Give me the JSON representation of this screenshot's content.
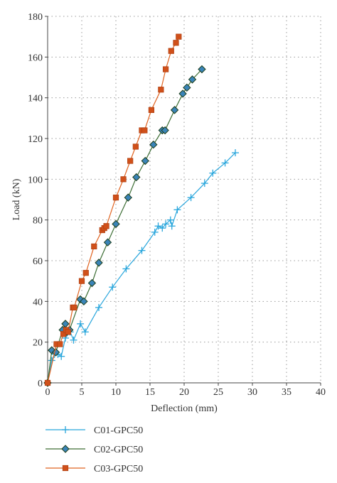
{
  "chart_data": {
    "type": "line",
    "title": "",
    "xlabel": "Deflection (mm)",
    "ylabel": "Load (kN)",
    "xlim": [
      0,
      40
    ],
    "ylim": [
      0,
      180
    ],
    "xticks": [
      0,
      5,
      10,
      15,
      20,
      25,
      30,
      35,
      40
    ],
    "yticks": [
      0,
      20,
      40,
      60,
      80,
      100,
      120,
      140,
      160,
      180
    ],
    "grid": true,
    "legend_position": "bottom-left",
    "series": [
      {
        "name": "C01-GPC50",
        "color": "#29a6dc",
        "marker": "plus",
        "points": [
          [
            0,
            0
          ],
          [
            0.6,
            11
          ],
          [
            1.0,
            14
          ],
          [
            1.5,
            14
          ],
          [
            2.0,
            13
          ],
          [
            2.6,
            22
          ],
          [
            3.3,
            25
          ],
          [
            3.8,
            21
          ],
          [
            4.8,
            29
          ],
          [
            5.5,
            25
          ],
          [
            7.5,
            37
          ],
          [
            9.5,
            47
          ],
          [
            11.5,
            56
          ],
          [
            13.8,
            65
          ],
          [
            15.7,
            74
          ],
          [
            16.2,
            77
          ],
          [
            16.8,
            76
          ],
          [
            17.3,
            78
          ],
          [
            18.0,
            80
          ],
          [
            18.2,
            77
          ],
          [
            19.0,
            85
          ],
          [
            21.0,
            91
          ],
          [
            23.0,
            98
          ],
          [
            24.2,
            103
          ],
          [
            26.0,
            108
          ],
          [
            27.5,
            113
          ]
        ]
      },
      {
        "name": "C02-GPC50",
        "color": "#3d6e35",
        "marker": "diamond",
        "points": [
          [
            0,
            0
          ],
          [
            0.6,
            16
          ],
          [
            1.2,
            15
          ],
          [
            2.2,
            26
          ],
          [
            2.6,
            29
          ],
          [
            2.8,
            25
          ],
          [
            3.2,
            26
          ],
          [
            4.8,
            41
          ],
          [
            5.3,
            40
          ],
          [
            6.5,
            49
          ],
          [
            7.5,
            59
          ],
          [
            8.8,
            69
          ],
          [
            10.0,
            78
          ],
          [
            11.8,
            91
          ],
          [
            13.0,
            101
          ],
          [
            14.3,
            109
          ],
          [
            15.5,
            117
          ],
          [
            16.8,
            124
          ],
          [
            17.2,
            124
          ],
          [
            18.6,
            134
          ],
          [
            19.8,
            142
          ],
          [
            20.4,
            145
          ],
          [
            21.2,
            149
          ],
          [
            22.6,
            154
          ]
        ]
      },
      {
        "name": "C03-GPC50",
        "color": "#e06320",
        "marker": "square",
        "points": [
          [
            0,
            0
          ],
          [
            1.3,
            19
          ],
          [
            1.8,
            19
          ],
          [
            2.3,
            24
          ],
          [
            2.7,
            26
          ],
          [
            3.0,
            25
          ],
          [
            3.7,
            37
          ],
          [
            3.9,
            37
          ],
          [
            5.0,
            50
          ],
          [
            5.6,
            54
          ],
          [
            6.8,
            67
          ],
          [
            8.0,
            75
          ],
          [
            8.3,
            76
          ],
          [
            8.6,
            77
          ],
          [
            10.0,
            91
          ],
          [
            11.1,
            100
          ],
          [
            12.1,
            109
          ],
          [
            12.9,
            116
          ],
          [
            13.8,
            124
          ],
          [
            14.2,
            124
          ],
          [
            15.2,
            134
          ],
          [
            16.6,
            144
          ],
          [
            17.3,
            154
          ],
          [
            18.1,
            163
          ],
          [
            18.8,
            167
          ],
          [
            19.2,
            170
          ]
        ]
      }
    ]
  }
}
